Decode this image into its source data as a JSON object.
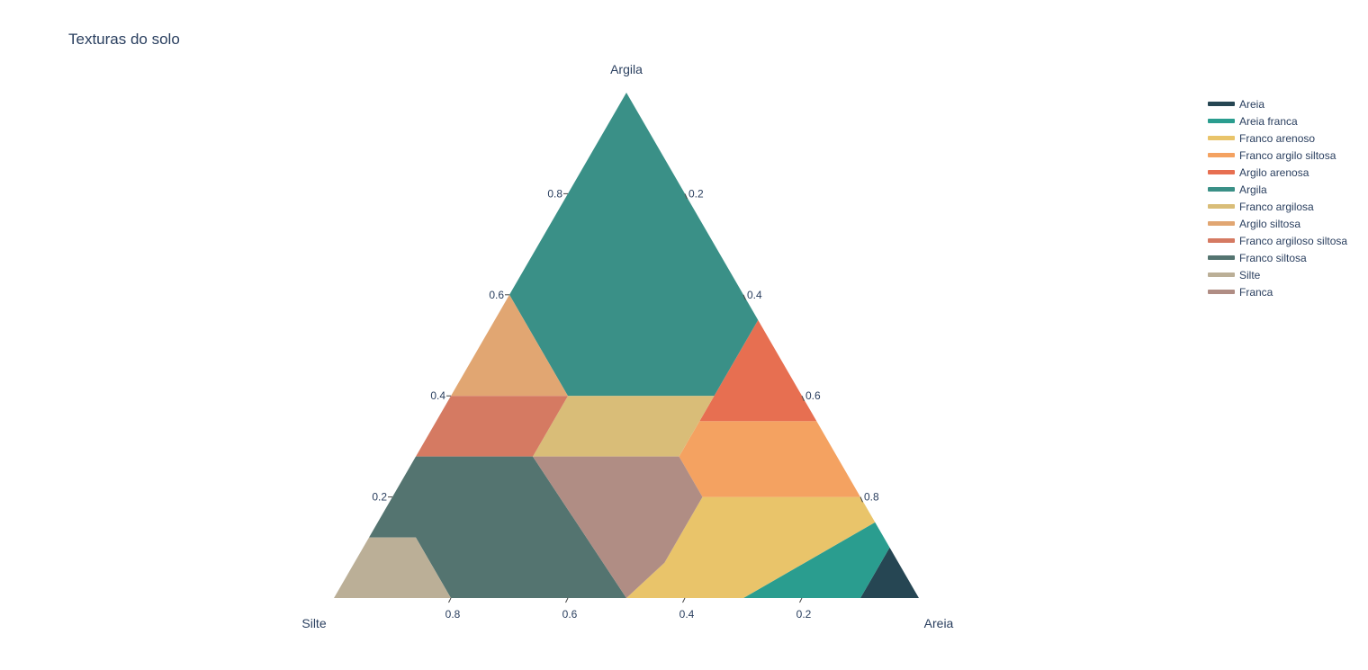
{
  "title": "Texturas do solo",
  "chart_data": {
    "type": "ternary",
    "title": "Texturas do solo",
    "axes": {
      "a": {
        "label": "Argila",
        "ticks": [
          "0.2",
          "0.4",
          "0.6",
          "0.8"
        ]
      },
      "b": {
        "label": "Silte",
        "ticks": [
          "0.2",
          "0.4",
          "0.6",
          "0.8"
        ]
      },
      "c": {
        "label": "Areia",
        "ticks": [
          "0.2",
          "0.4",
          "0.6",
          "0.8"
        ]
      }
    },
    "tick_values": [
      0.2,
      0.4,
      0.6,
      0.8
    ],
    "legend_position": "right",
    "series": [
      {
        "name": "Areia",
        "color": "#264653",
        "points": [
          [
            0,
            0.1,
            0.9
          ],
          [
            0,
            0,
            1
          ],
          [
            0.1,
            0,
            0.9
          ]
        ]
      },
      {
        "name": "Areia franca",
        "color": "#2a9d8f",
        "points": [
          [
            0,
            0.1,
            0.9
          ],
          [
            0.1,
            0,
            0.9
          ],
          [
            0.15,
            0,
            0.85
          ],
          [
            0,
            0.3,
            0.7
          ]
        ]
      },
      {
        "name": "Franco arenoso",
        "color": "#e9c46a",
        "points": [
          [
            0,
            0.3,
            0.7
          ],
          [
            0.15,
            0,
            0.85
          ],
          [
            0.2,
            0,
            0.8
          ],
          [
            0.2,
            0.27,
            0.53
          ],
          [
            0.07,
            0.4,
            0.53
          ],
          [
            0,
            0.5,
            0.5
          ]
        ]
      },
      {
        "name": "Franco argilo siltosa",
        "color": "#f4a261",
        "points": [
          [
            0.2,
            0.27,
            0.53
          ],
          [
            0.2,
            0,
            0.8
          ],
          [
            0.35,
            0,
            0.65
          ],
          [
            0.35,
            0.2,
            0.45
          ],
          [
            0.28,
            0.27,
            0.45
          ]
        ]
      },
      {
        "name": "Argilo arenosa",
        "color": "#e76f51",
        "points": [
          [
            0.35,
            0.2,
            0.45
          ],
          [
            0.35,
            0,
            0.65
          ],
          [
            0.55,
            0,
            0.45
          ]
        ]
      },
      {
        "name": "Argila",
        "color": "#3a9087",
        "points": [
          [
            0.55,
            0,
            0.45
          ],
          [
            1,
            0,
            0
          ],
          [
            0.6,
            0.4,
            0
          ],
          [
            0.4,
            0.4,
            0.2
          ],
          [
            0.4,
            0.15,
            0.45
          ]
        ]
      },
      {
        "name": "Franco argilosa",
        "color": "#d9bd78",
        "points": [
          [
            0.4,
            0.4,
            0.2
          ],
          [
            0.4,
            0.15,
            0.45
          ],
          [
            0.28,
            0.27,
            0.45
          ],
          [
            0.28,
            0.52,
            0.2
          ]
        ]
      },
      {
        "name": "Argilo siltosa",
        "color": "#e1a672",
        "points": [
          [
            0.4,
            0.6,
            0
          ],
          [
            0.6,
            0.4,
            0
          ],
          [
            0.4,
            0.4,
            0.2
          ]
        ]
      },
      {
        "name": "Franco argiloso siltosa",
        "color": "#d57a62",
        "points": [
          [
            0.28,
            0.72,
            0
          ],
          [
            0.4,
            0.6,
            0
          ],
          [
            0.4,
            0.4,
            0.2
          ],
          [
            0.28,
            0.52,
            0.2
          ]
        ]
      },
      {
        "name": "Franco siltosa",
        "color": "#547470",
        "points": [
          [
            0.28,
            0.72,
            0
          ],
          [
            0.28,
            0.52,
            0.2
          ],
          [
            0,
            0.5,
            0.5
          ],
          [
            0,
            0.8,
            0.2
          ],
          [
            0.12,
            0.8,
            0.08
          ],
          [
            0.12,
            0.88,
            0
          ]
        ]
      },
      {
        "name": "Silte",
        "color": "#bbaf97",
        "points": [
          [
            0.12,
            0.88,
            0
          ],
          [
            0.12,
            0.8,
            0.08
          ],
          [
            0,
            0.8,
            0.2
          ],
          [
            0,
            1,
            0
          ]
        ]
      },
      {
        "name": "Franca",
        "color": "#b08d84",
        "points": [
          [
            0.28,
            0.52,
            0.2
          ],
          [
            0.28,
            0.27,
            0.45
          ],
          [
            0.2,
            0.27,
            0.53
          ],
          [
            0.07,
            0.4,
            0.53
          ],
          [
            0,
            0.5,
            0.5
          ]
        ]
      }
    ]
  }
}
